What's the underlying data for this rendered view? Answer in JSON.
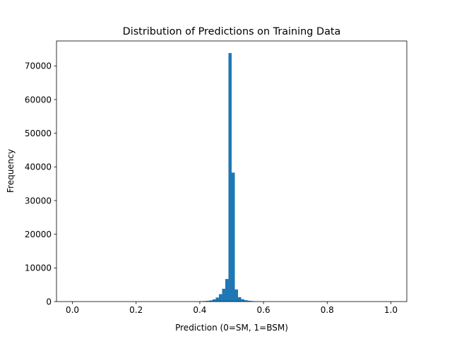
{
  "chart_data": {
    "type": "bar",
    "title": "Distribution of Predictions on Training Data",
    "xlabel": "Prediction (0=SM, 1=BSM)",
    "ylabel": "Frequency",
    "xlim": [
      -0.05,
      1.05
    ],
    "ylim": [
      0,
      77400
    ],
    "x_ticks": [
      0.0,
      0.2,
      0.4,
      0.6,
      0.8,
      1.0
    ],
    "x_tick_labels": [
      "0.0",
      "0.2",
      "0.4",
      "0.6",
      "0.8",
      "1.0"
    ],
    "y_ticks": [
      0,
      10000,
      20000,
      30000,
      40000,
      50000,
      60000,
      70000
    ],
    "y_tick_labels": [
      "0",
      "10000",
      "20000",
      "30000",
      "40000",
      "50000",
      "60000",
      "70000"
    ],
    "grid": false,
    "bar_color": "#1f77b4",
    "bin_width": 0.01,
    "bins": [
      {
        "x0": 0.4,
        "count": 100
      },
      {
        "x0": 0.41,
        "count": 150
      },
      {
        "x0": 0.42,
        "count": 220
      },
      {
        "x0": 0.43,
        "count": 350
      },
      {
        "x0": 0.44,
        "count": 650
      },
      {
        "x0": 0.45,
        "count": 1200
      },
      {
        "x0": 0.46,
        "count": 2200
      },
      {
        "x0": 0.47,
        "count": 3800
      },
      {
        "x0": 0.48,
        "count": 6700
      },
      {
        "x0": 0.49,
        "count": 73800
      },
      {
        "x0": 0.5,
        "count": 38300
      },
      {
        "x0": 0.51,
        "count": 3600
      },
      {
        "x0": 0.52,
        "count": 1300
      },
      {
        "x0": 0.53,
        "count": 700
      },
      {
        "x0": 0.54,
        "count": 400
      },
      {
        "x0": 0.55,
        "count": 250
      },
      {
        "x0": 0.56,
        "count": 150
      },
      {
        "x0": 0.57,
        "count": 100
      },
      {
        "x0": 0.58,
        "count": 60
      },
      {
        "x0": 0.59,
        "count": 40
      }
    ]
  }
}
